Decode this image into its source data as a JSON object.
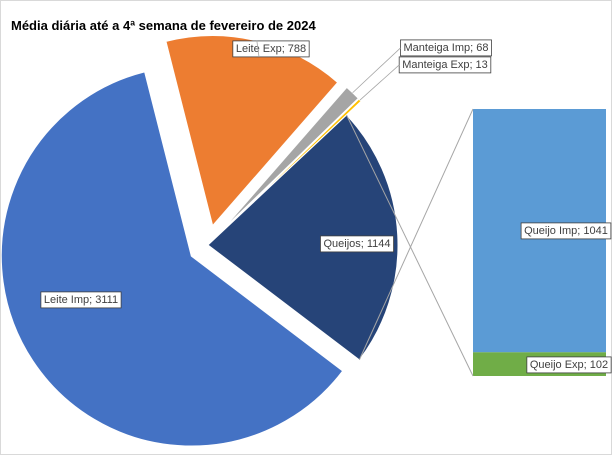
{
  "chart_data": {
    "type": "pie",
    "subtype": "bar-of-pie",
    "title": "Média diária até a 4ª semana de fevereiro de 2024",
    "slices": [
      {
        "name": "Leite Imp",
        "value": 3111,
        "label": "Leite Imp; 3111",
        "color": "#4472C4"
      },
      {
        "name": "Leite Exp",
        "value": 788,
        "label": "Leite Exp; 788",
        "color": "#ED7D31"
      },
      {
        "name": "Manteiga Imp",
        "value": 68,
        "label": "Manteiga Imp; 68",
        "color": "#A5A5A5"
      },
      {
        "name": "Manteiga Exp",
        "value": 13,
        "label": "Manteiga Exp; 13",
        "color": "#FFC000"
      },
      {
        "name": "Queijos",
        "value": 1144,
        "label": "Queijos; 1144",
        "color": "#264478"
      }
    ],
    "breakout": {
      "from": "Queijos",
      "items": [
        {
          "name": "Queijo Imp",
          "value": 1041,
          "label": "Queijo Imp; 1041",
          "color": "#5B9BD5"
        },
        {
          "name": "Queijo Exp",
          "value": 102,
          "label": "Queijo Exp; 102",
          "color": "#70AD47"
        }
      ]
    }
  }
}
